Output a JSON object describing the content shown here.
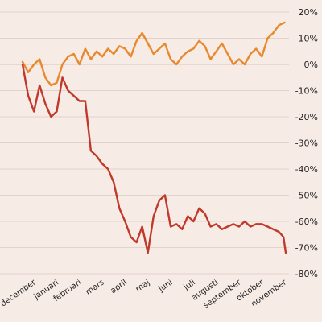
{
  "chart_data": {
    "type": "line",
    "title": "",
    "xlabel": "",
    "ylabel": "",
    "x_unit": "month_index",
    "xlim": [
      0,
      11.55
    ],
    "ylim": [
      -80,
      20
    ],
    "yticks": [
      20,
      10,
      0,
      -10,
      -20,
      -30,
      -40,
      -50,
      -60,
      -70,
      -80
    ],
    "ytick_labels": [
      "20%",
      "10%",
      "0%",
      "-10%",
      "-20%",
      "-30%",
      "-40%",
      "-50%",
      "-60%",
      "-70%",
      "-80%"
    ],
    "x_tick_labels": [
      "december",
      "januari",
      "februari",
      "mars",
      "april",
      "maj",
      "juni",
      "juli",
      "augusti",
      "september",
      "oktober",
      "november"
    ],
    "grid": true,
    "legend": "none",
    "series": [
      {
        "color": "#e8892e",
        "x": [
          0,
          0.25,
          0.5,
          0.75,
          1.0,
          1.25,
          1.5,
          1.75,
          2.0,
          2.25,
          2.5,
          2.75,
          3.0,
          3.25,
          3.5,
          3.75,
          4.0,
          4.25,
          4.5,
          4.75,
          5.0,
          5.25,
          5.5,
          5.75,
          6.0,
          6.25,
          6.5,
          6.75,
          7.0,
          7.25,
          7.5,
          7.75,
          8.0,
          8.25,
          8.5,
          8.75,
          9.0,
          9.25,
          9.5,
          9.75,
          10.0,
          10.25,
          10.5,
          10.75,
          11.0,
          11.25,
          11.5
        ],
        "values": [
          1,
          -3,
          0,
          2,
          -5,
          -8,
          -7,
          0,
          3,
          4,
          0,
          6,
          2,
          5,
          3,
          6,
          4,
          7,
          6,
          3,
          9,
          12,
          8,
          4,
          6,
          8,
          2,
          0,
          3,
          5,
          6,
          9,
          7,
          2,
          5,
          8,
          4,
          0,
          2,
          0,
          4,
          6,
          3,
          10,
          12,
          15,
          16
        ]
      },
      {
        "color": "#c0392b",
        "x": [
          0,
          0.25,
          0.5,
          0.75,
          1.0,
          1.25,
          1.5,
          1.75,
          2.0,
          2.25,
          2.5,
          2.75,
          3.0,
          3.25,
          3.5,
          3.75,
          4.0,
          4.25,
          4.5,
          4.75,
          5.0,
          5.25,
          5.5,
          5.75,
          6.0,
          6.25,
          6.5,
          6.75,
          7.0,
          7.25,
          7.5,
          7.75,
          8.0,
          8.25,
          8.5,
          8.75,
          9.0,
          9.25,
          9.5,
          9.75,
          10.0,
          10.25,
          10.5,
          10.75,
          11.0,
          11.25,
          11.45,
          11.55
        ],
        "values": [
          0,
          -12,
          -18,
          -8,
          -15,
          -20,
          -18,
          -5,
          -10,
          -12,
          -14,
          -14,
          -33,
          -35,
          -38,
          -40,
          -45,
          -55,
          -60,
          -66,
          -68,
          -62,
          -72,
          -58,
          -52,
          -50,
          -62,
          -61,
          -63,
          -58,
          -60,
          -55,
          -57,
          -62,
          -61,
          -63,
          -62,
          -61,
          -62,
          -60,
          -62,
          -61,
          -61,
          -62,
          -63,
          -64,
          -66,
          -72
        ]
      }
    ]
  }
}
